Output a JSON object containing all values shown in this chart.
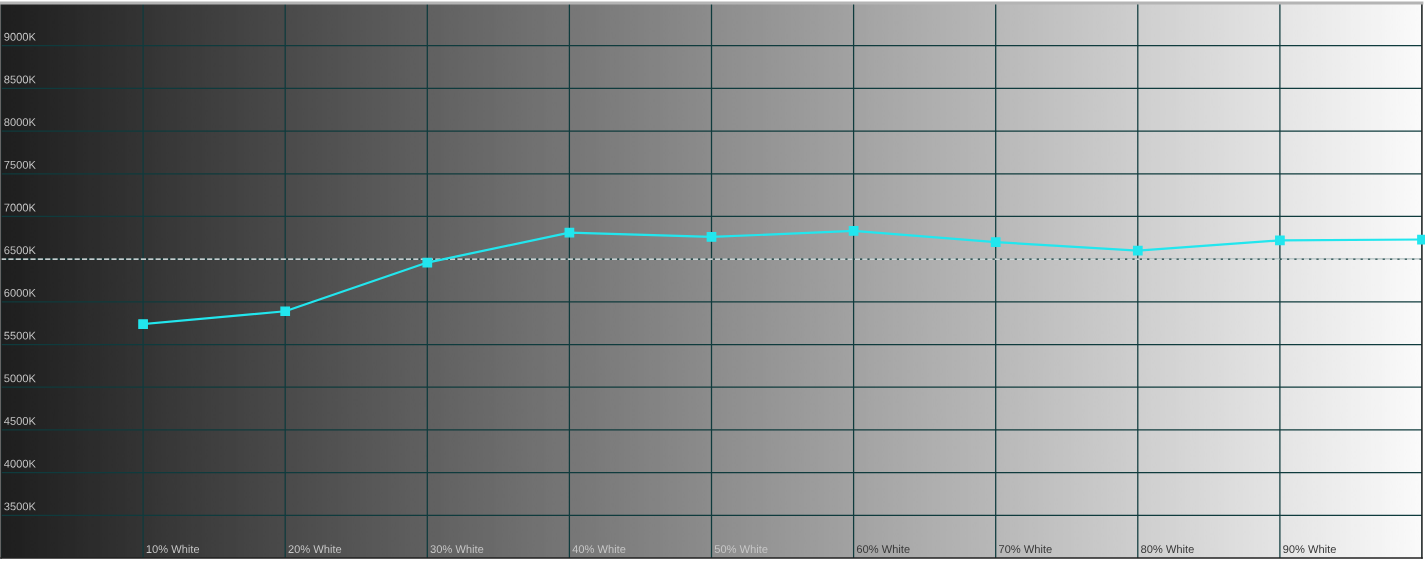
{
  "chart_data": {
    "type": "line",
    "categories": [
      null,
      "10% White",
      "20% White",
      "30% White",
      "40% White",
      "50% White",
      "60% White",
      "70% White",
      "80% White",
      "90% White",
      null
    ],
    "series": [
      {
        "color": "#22e6ee",
        "values": [
          null,
          5740,
          5890,
          6460,
          6810,
          6760,
          6830,
          6700,
          6600,
          6720,
          6730
        ]
      }
    ],
    "ylim": [
      3000,
      9500
    ],
    "yticks": [
      {
        "value": 3500,
        "label": "3500K"
      },
      {
        "value": 4000,
        "label": "4000K"
      },
      {
        "value": 4500,
        "label": "4500K"
      },
      {
        "value": 5000,
        "label": "5000K"
      },
      {
        "value": 5500,
        "label": "5500K"
      },
      {
        "value": 6000,
        "label": "6000K"
      },
      {
        "value": 6500,
        "label": "6500K"
      },
      {
        "value": 7000,
        "label": "7000K"
      },
      {
        "value": 7500,
        "label": "7500K"
      },
      {
        "value": 8000,
        "label": "8000K"
      },
      {
        "value": 8500,
        "label": "8500K"
      },
      {
        "value": 9000,
        "label": "9000K"
      }
    ],
    "grid": true,
    "marker": "square",
    "line_style": "solid",
    "ref_lines": [
      {
        "axis": "y",
        "value": 6500,
        "color": "#ffffff",
        "line_style": "dashed"
      }
    ]
  }
}
